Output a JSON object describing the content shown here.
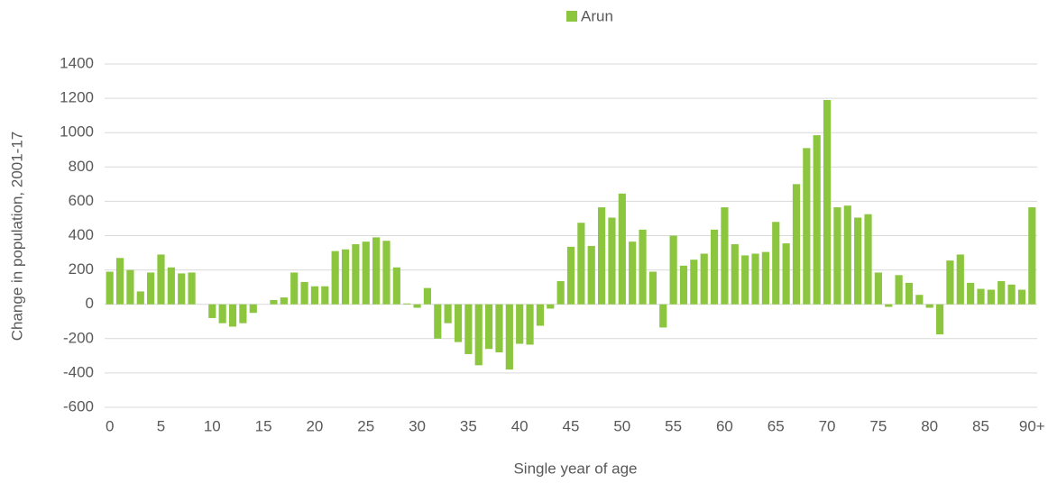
{
  "chart_data": {
    "type": "bar",
    "y_label": "Change in population, 2001-17",
    "x_label": "Single year of age",
    "categories": [
      "0",
      null,
      null,
      null,
      null,
      "5",
      null,
      null,
      null,
      null,
      "10",
      null,
      null,
      null,
      null,
      "15",
      null,
      null,
      null,
      null,
      "20",
      null,
      null,
      null,
      null,
      "25",
      null,
      null,
      null,
      null,
      "30",
      null,
      null,
      null,
      null,
      "35",
      null,
      null,
      null,
      null,
      "40",
      null,
      null,
      null,
      null,
      "45",
      null,
      null,
      null,
      null,
      "50",
      null,
      null,
      null,
      null,
      "55",
      null,
      null,
      null,
      null,
      "60",
      null,
      null,
      null,
      null,
      "65",
      null,
      null,
      null,
      null,
      "70",
      null,
      null,
      null,
      null,
      "75",
      null,
      null,
      null,
      null,
      "80",
      null,
      null,
      null,
      null,
      "85",
      null,
      null,
      null,
      null,
      "90+"
    ],
    "series": [
      {
        "name": "Arun",
        "color": "#8cc63f",
        "values": [
          190,
          270,
          200,
          75,
          185,
          290,
          215,
          180,
          185,
          0,
          -80,
          -110,
          -130,
          -110,
          -50,
          0,
          25,
          40,
          185,
          130,
          105,
          105,
          310,
          320,
          350,
          365,
          390,
          370,
          215,
          5,
          -20,
          95,
          -200,
          -110,
          -220,
          -290,
          -355,
          -260,
          -280,
          -380,
          -230,
          -235,
          -125,
          -25,
          135,
          335,
          475,
          340,
          565,
          505,
          645,
          365,
          435,
          190,
          -135,
          400,
          225,
          260,
          295,
          435,
          565,
          350,
          285,
          295,
          305,
          480,
          355,
          700,
          910,
          985,
          1190,
          565,
          575,
          505,
          525,
          185,
          -15,
          170,
          125,
          55,
          -20,
          -175,
          255,
          290,
          125,
          90,
          85,
          135,
          115,
          85,
          565
        ]
      }
    ],
    "ylim": [
      -600,
      1400
    ],
    "yticks": [
      -600,
      -400,
      -200,
      0,
      200,
      400,
      600,
      800,
      1000,
      1200,
      1400
    ],
    "grid": true,
    "legend": "top"
  }
}
